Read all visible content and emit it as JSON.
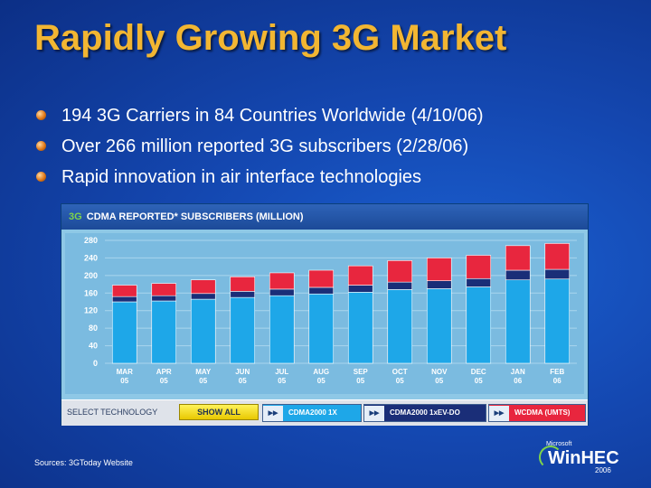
{
  "slide": {
    "title": "Rapidly Growing 3G Market",
    "bullets": [
      "194 3G Carriers in 84 Countries Worldwide (4/10/06)",
      "Over 266 million reported 3G subscribers (2/28/06)",
      "Rapid innovation in air interface technologies"
    ],
    "source": "Sources: 3GToday Website"
  },
  "widget": {
    "header_3g": "3G",
    "header_title": "CDMA REPORTED* SUBSCRIBERS (MILLION)",
    "nav_prev": "◀◀",
    "nav_next": "▶▶",
    "select_label": "SELECT TECHNOLOGY",
    "show_all": "SHOW ALL",
    "techs": [
      {
        "label": "CDMA2000 1X",
        "color": "#1ea7e8"
      },
      {
        "label": "CDMA2000 1xEV-DO",
        "color": "#1a2e78"
      },
      {
        "label": "WCDMA (UMTS)",
        "color": "#e8263e"
      }
    ]
  },
  "logo": {
    "small": "Microsoft",
    "name": "WinHEC",
    "year": "2006"
  },
  "chart_data": {
    "type": "bar",
    "title": "CDMA REPORTED* SUBSCRIBERS (MILLION)",
    "categories": [
      "MAR 05",
      "APR 05",
      "MAY 05",
      "JUN 05",
      "JUL 05",
      "AUG 05",
      "SEP 05",
      "OCT 05",
      "NOV 05",
      "DEC 05",
      "JAN 06",
      "FEB 06"
    ],
    "ylim": [
      0,
      280
    ],
    "yticks": [
      0,
      40,
      80,
      120,
      160,
      200,
      240,
      280
    ],
    "stacked": true,
    "colors": {
      "CDMA2000 1X": "#1ea7e8",
      "CDMA2000 1xEV-DO": "#1a2e78",
      "WCDMA (UMTS)": "#e8263e"
    },
    "series": [
      {
        "name": "CDMA2000 1X",
        "values": [
          140,
          142,
          146,
          150,
          154,
          158,
          162,
          168,
          170,
          174,
          190,
          192
        ]
      },
      {
        "name": "CDMA2000 1xEV-DO",
        "values": [
          12,
          12,
          13,
          14,
          15,
          15,
          16,
          17,
          18,
          19,
          22,
          22
        ]
      },
      {
        "name": "WCDMA (UMTS)",
        "values": [
          26,
          28,
          31,
          33,
          37,
          39,
          44,
          49,
          52,
          53,
          56,
          59
        ]
      }
    ]
  }
}
